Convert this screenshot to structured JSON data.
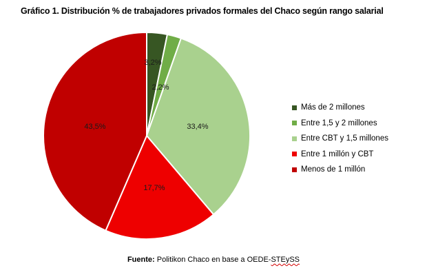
{
  "chart_data": {
    "type": "pie",
    "title": "Gráfico 1. Distribución % de trabajadores privados formales del Chaco según rango salarial",
    "categories": [
      "Más de 2 millones",
      "Entre 1,5 y 2 millones",
      "Entre CBT y 1,5 millones",
      "Entre 1 millón y CBT",
      "Menos de 1 millón"
    ],
    "values": [
      3.2,
      2.2,
      33.4,
      17.7,
      43.5
    ],
    "value_labels": [
      "3,2%",
      "2,2%",
      "33,4%",
      "17,7%",
      "43,5%"
    ],
    "colors": [
      "#375623",
      "#70ad47",
      "#a9d18e",
      "#ee0000",
      "#c00000"
    ],
    "legend_position": "right",
    "start_angle": "top, clockwise"
  },
  "source": {
    "label": "Fuente:",
    "text": " Politikon Chaco en base a OEDE-",
    "org": "STEySS"
  }
}
